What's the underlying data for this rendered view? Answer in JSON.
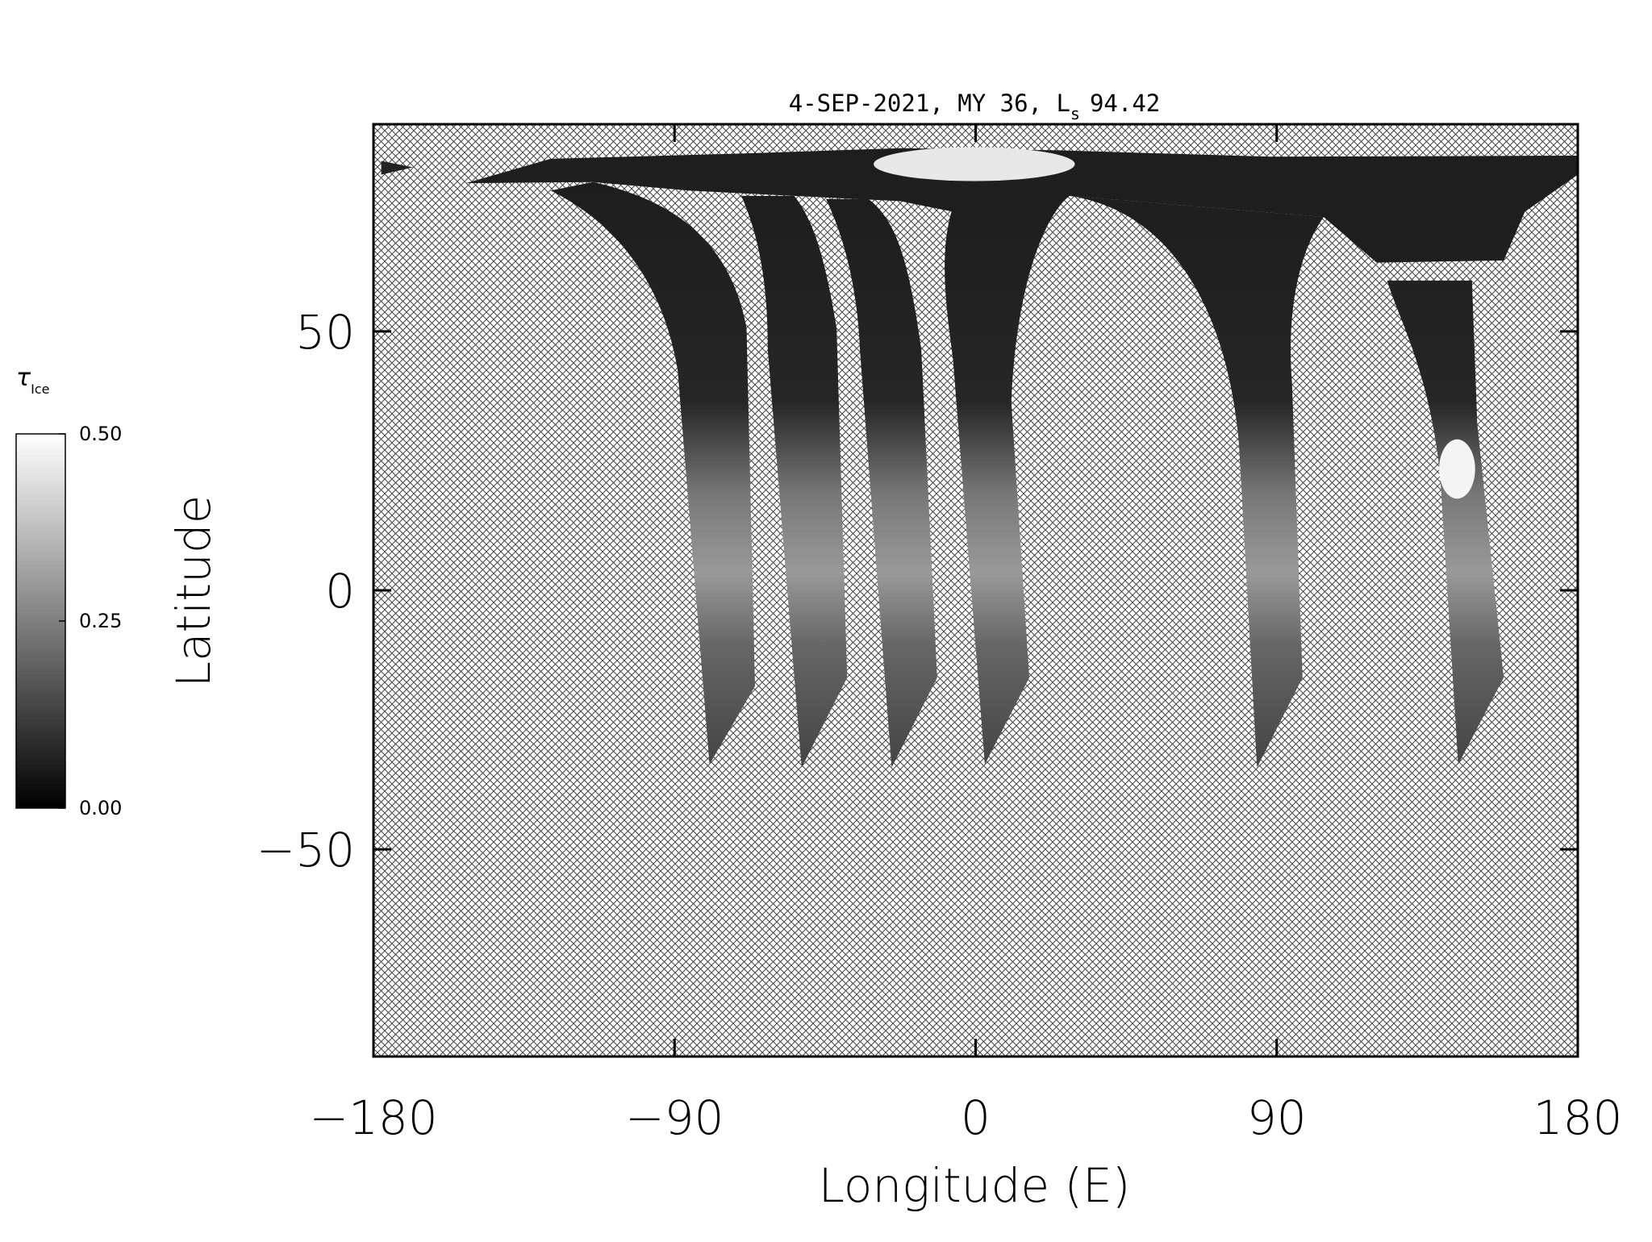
{
  "chart_data": {
    "type": "map",
    "title": "4-SEP-2021, MY 36,  L",
    "title_subscript": "s",
    "title_suffix": "94.42",
    "x_label": "Longitude (E)",
    "y_label": "Latitude",
    "xlim": [
      -180,
      180
    ],
    "xticks": [
      {
        "value": -180,
        "label": "−180"
      },
      {
        "value": -90,
        "label": "−90"
      },
      0,
      90,
      180
    ],
    "ylim": [
      -90,
      90
    ],
    "yticks": [
      {
        "value": -50,
        "label": "−50"
      },
      0,
      50
    ],
    "colorbar": {
      "label": "τ",
      "label_subscript": "Ice",
      "clim": [
        0,
        0.5
      ],
      "colors": [
        "#000000",
        "#ffffff"
      ],
      "ticks": [
        {
          "value": 0,
          "label": "0.00"
        },
        {
          "value": 0.25,
          "label": "0.25"
        },
        {
          "value": 0.5,
          "label": "0.50"
        }
      ]
    }
  }
}
